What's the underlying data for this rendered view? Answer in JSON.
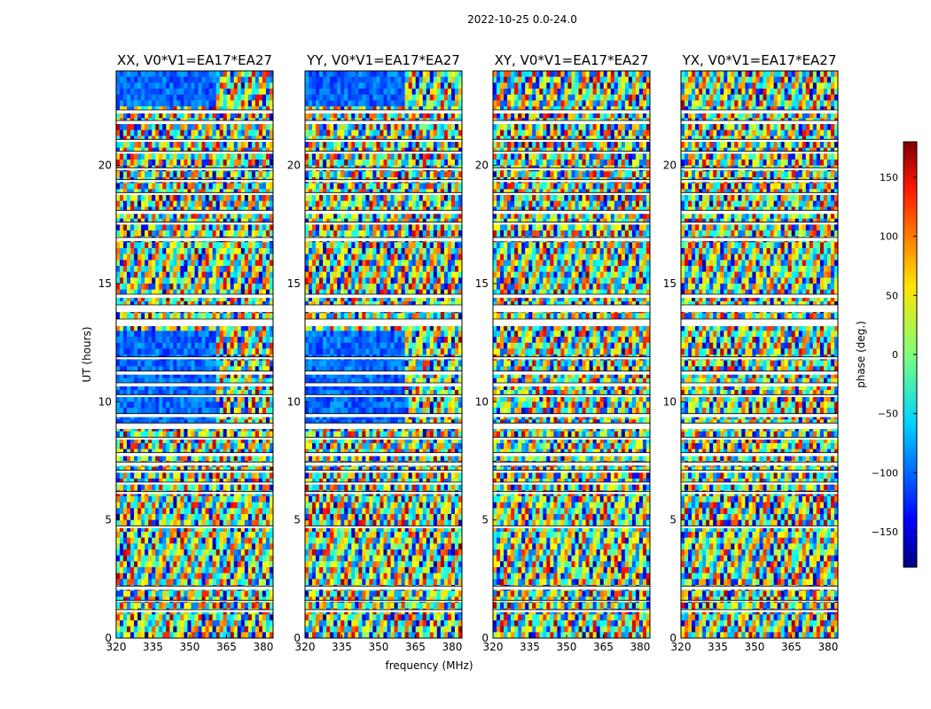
{
  "chart_data": {
    "type": "heatmap",
    "suptitle": "2022-10-25 0.0-24.0",
    "xlabel": "frequency (MHz)",
    "ylabel": "UT (hours)",
    "xlim": [
      320,
      384
    ],
    "ylim": [
      0,
      24
    ],
    "x_ticks": [
      320,
      335,
      350,
      365,
      380
    ],
    "y_ticks": [
      0,
      5,
      10,
      15,
      20
    ],
    "panels": [
      {
        "title": "XX, V0*V1=EA17*EA27",
        "polarization": "XX"
      },
      {
        "title": "YY, V0*V1=EA17*EA27",
        "polarization": "YY"
      },
      {
        "title": "XY, V0*V1=EA17*EA27",
        "polarization": "XY"
      },
      {
        "title": "YX, V0*V1=EA17*EA27",
        "polarization": "YX"
      }
    ],
    "colorbar": {
      "label": "phase (deg.)",
      "range": [
        -180,
        180
      ],
      "ticks": [
        150,
        100,
        50,
        0,
        -50,
        -100,
        -150
      ],
      "tick_labels": [
        "150",
        "100",
        "50",
        "0",
        "−50",
        "−100",
        "−150"
      ],
      "colormap": "jet"
    },
    "flagged_gaps_hours": [
      [
        0.0,
        0.0
      ]
    ]
  }
}
